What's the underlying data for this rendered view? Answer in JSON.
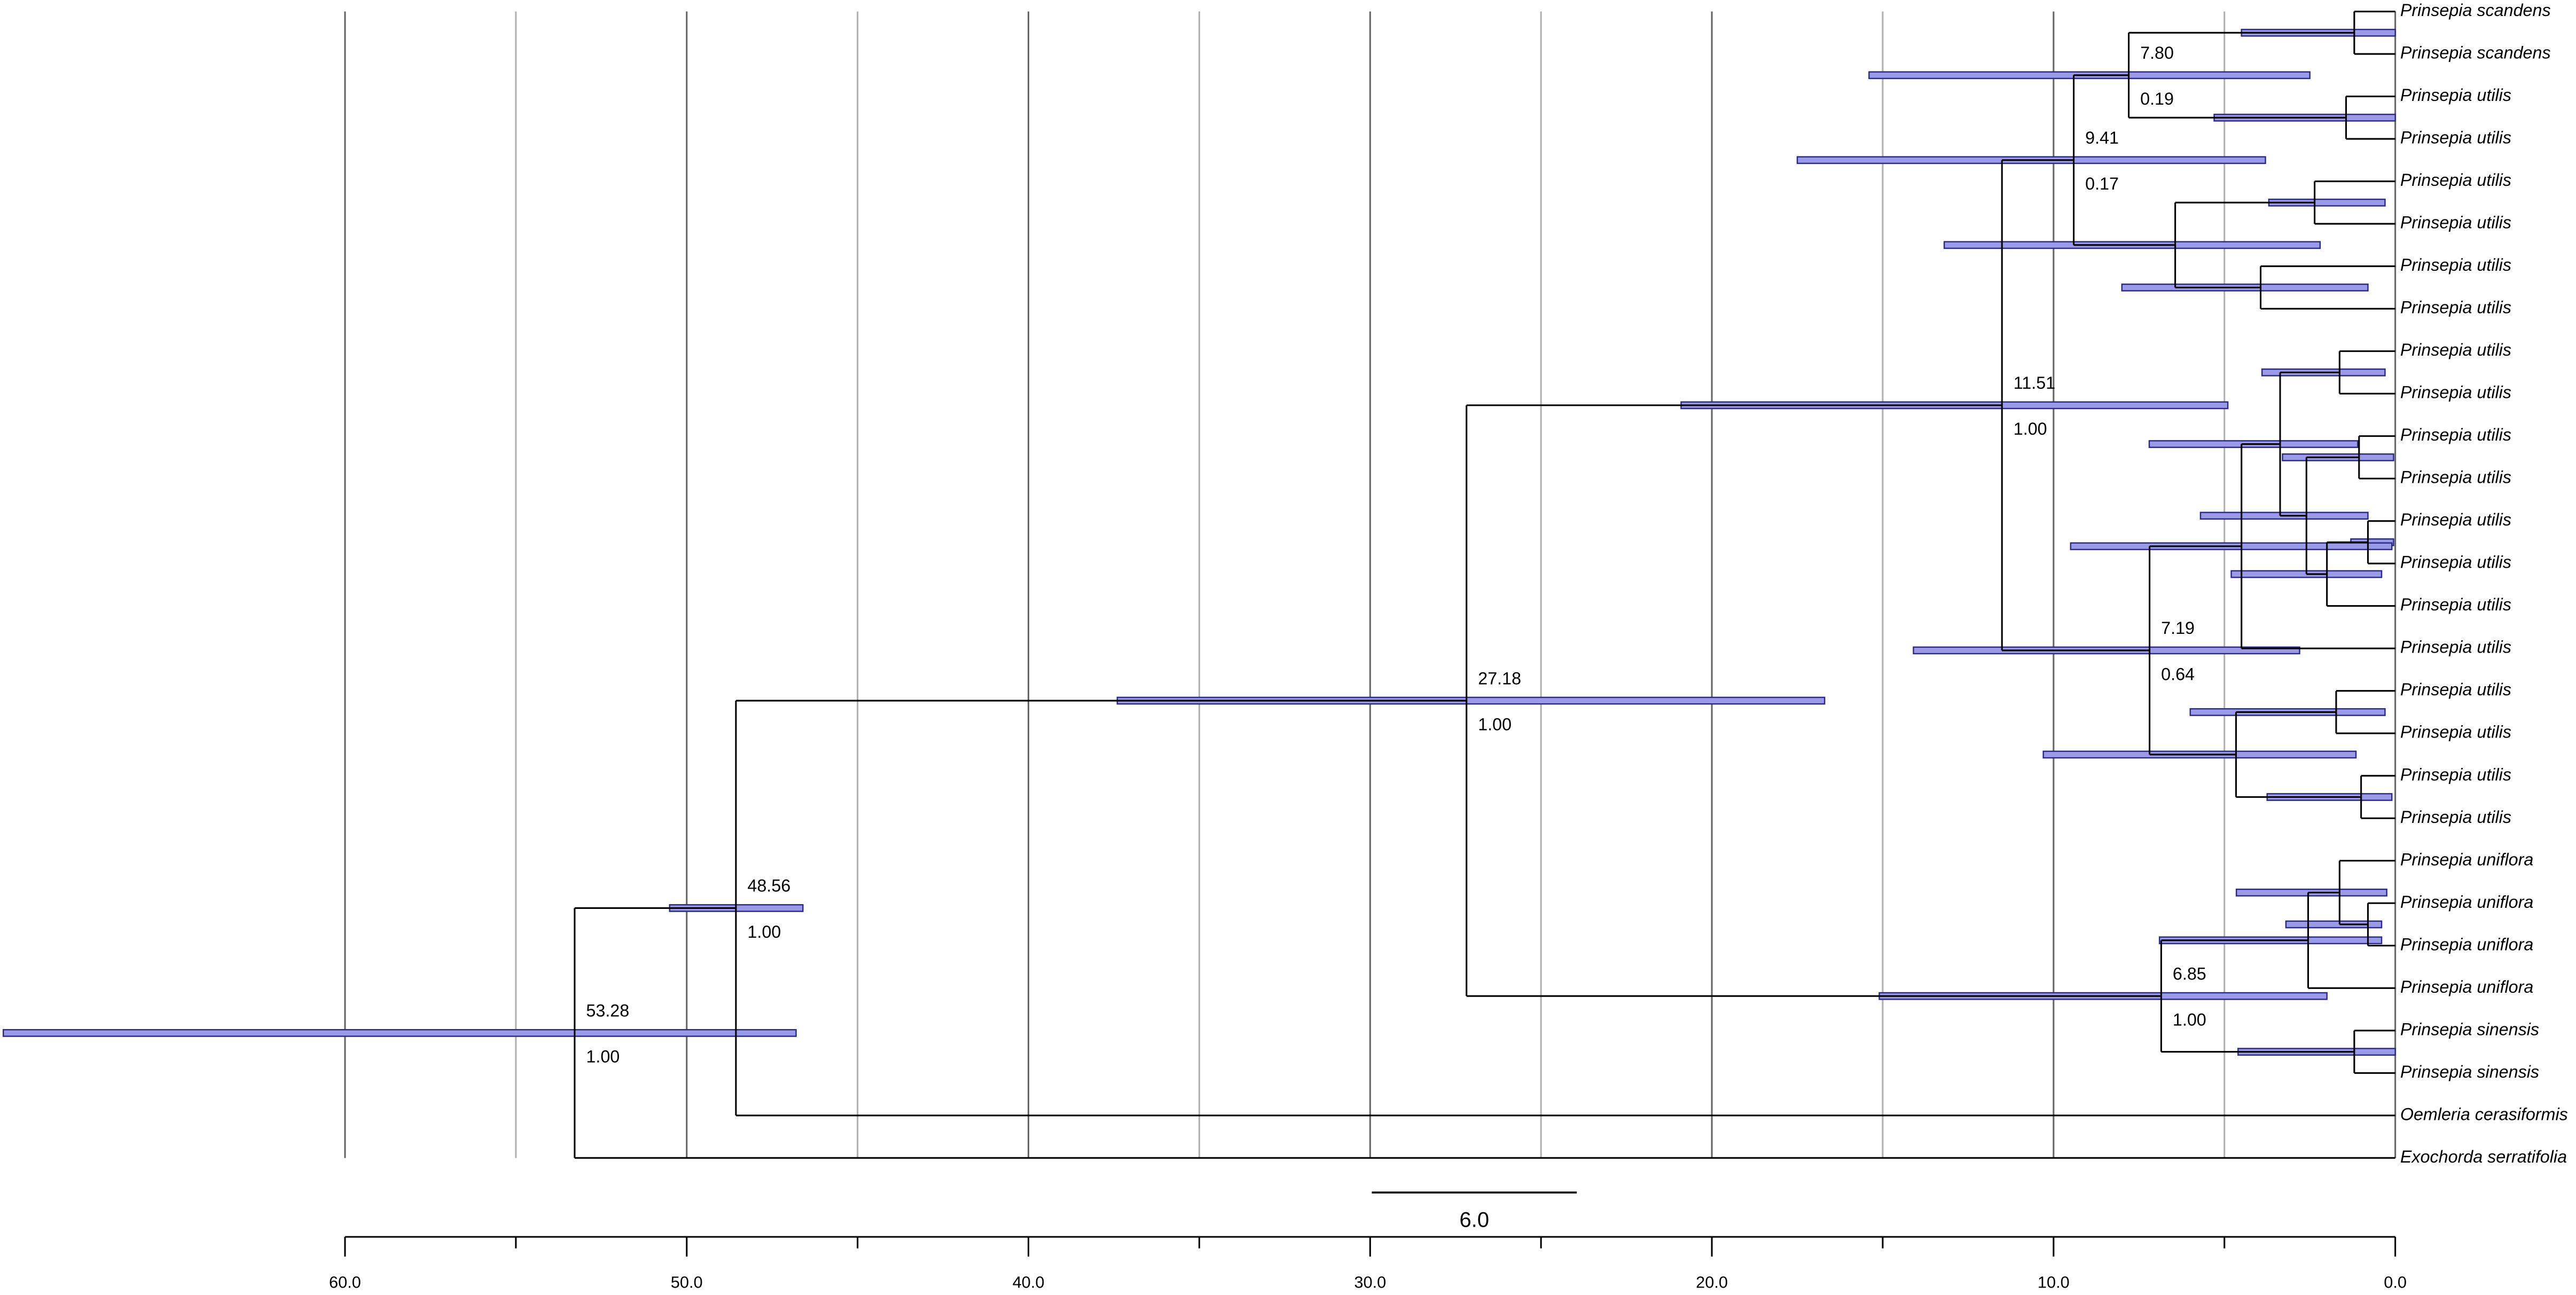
{
  "axis": {
    "xlim": [
      60,
      0
    ],
    "xticks": [
      {
        "value": 60,
        "label": "60.0"
      },
      {
        "value": 50,
        "label": "50.0"
      },
      {
        "value": 40,
        "label": "40.0"
      },
      {
        "value": 30,
        "label": "30.0"
      },
      {
        "value": 20,
        "label": "20.0"
      },
      {
        "value": 10,
        "label": "10.0"
      },
      {
        "value": 0,
        "label": "0.0"
      }
    ],
    "minor_xticks": [
      55,
      45,
      35,
      25,
      15,
      5
    ]
  },
  "scale_bar": {
    "value": 6,
    "label": "6.0"
  },
  "tree": {
    "age": 53.28,
    "age_label": "53.28",
    "posterior": "1.00",
    "hpd": [
      46.8,
      70.0
    ],
    "children": [
      {
        "age": 48.56,
        "age_label": "48.56",
        "posterior": "1.00",
        "hpd": [
          46.6,
          50.5
        ],
        "children": [
          {
            "age": 27.18,
            "age_label": "27.18",
            "posterior": "1.00",
            "hpd": [
              16.7,
              37.4
            ],
            "children": [
              {
                "age": 11.51,
                "age_label": "11.51",
                "posterior": "1.00",
                "hpd": [
                  4.9,
                  20.9
                ],
                "children": [
                  {
                    "age": 9.41,
                    "age_label": "9.41",
                    "posterior": "0.17",
                    "hpd": [
                      3.8,
                      17.5
                    ],
                    "children": [
                      {
                        "age": 7.8,
                        "age_label": "7.80",
                        "posterior": "0.19",
                        "hpd": [
                          2.5,
                          15.4
                        ],
                        "children": [
                          {
                            "age": 1.2,
                            "hpd": [
                              0,
                              4.5
                            ],
                            "children": [
                              {
                                "label": "Prinsepia scandens"
                              },
                              {
                                "label": "Prinsepia scandens"
                              }
                            ]
                          },
                          {
                            "age": 1.44,
                            "hpd": [
                              0,
                              5.3
                            ],
                            "children": [
                              {
                                "label": "Prinsepia utilis"
                              },
                              {
                                "label": "Prinsepia utilis"
                              }
                            ]
                          }
                        ]
                      },
                      {
                        "age": 6.44,
                        "hpd": [
                          2.2,
                          13.2
                        ],
                        "children": [
                          {
                            "age": 2.36,
                            "hpd": [
                              0.3,
                              3.7
                            ],
                            "children": [
                              {
                                "label": "Prinsepia utilis"
                              },
                              {
                                "label": "Prinsepia utilis"
                              }
                            ]
                          },
                          {
                            "age": 3.94,
                            "hpd": [
                              0.8,
                              8.0
                            ],
                            "children": [
                              {
                                "label": "Prinsepia utilis"
                              },
                              {
                                "label": "Prinsepia utilis"
                              }
                            ]
                          }
                        ]
                      }
                    ]
                  },
                  {
                    "age": 7.19,
                    "age_label": "7.19",
                    "posterior": "0.64",
                    "hpd": [
                      2.8,
                      14.1
                    ],
                    "children": [
                      {
                        "age": 4.5,
                        "hpd": [
                          0.1,
                          9.5
                        ],
                        "children": [
                          {
                            "age": 3.37,
                            "hpd": [
                              1.1,
                              7.2
                            ],
                            "children": [
                              {
                                "age": 1.63,
                                "hpd": [
                                  0.3,
                                  3.9
                                ],
                                "children": [
                                  {
                                    "label": "Prinsepia utilis"
                                  },
                                  {
                                    "label": "Prinsepia utilis"
                                  }
                                ]
                              },
                              {
                                "age": 2.6,
                                "hpd": [
                                  0.8,
                                  5.7
                                ],
                                "children": [
                                  {
                                    "age": 1.06,
                                    "hpd": [
                                      0.05,
                                      3.3
                                    ],
                                    "children": [
                                      {
                                        "label": "Prinsepia utilis"
                                      },
                                      {
                                        "label": "Prinsepia utilis"
                                      }
                                    ]
                                  },
                                  {
                                    "age": 2.0,
                                    "hpd": [
                                      0.4,
                                      4.8
                                    ],
                                    "children": [
                                      {
                                        "age": 0.8,
                                        "hpd": [
                                          0.05,
                                          1.3
                                        ],
                                        "children": [
                                          {
                                            "label": "Prinsepia utilis"
                                          },
                                          {
                                            "label": "Prinsepia utilis"
                                          }
                                        ]
                                      },
                                      {
                                        "label": "Prinsepia utilis"
                                      }
                                    ]
                                  }
                                ]
                              }
                            ]
                          },
                          {
                            "label": "Prinsepia utilis"
                          }
                        ]
                      },
                      {
                        "age": 4.66,
                        "hpd": [
                          1.15,
                          10.3
                        ],
                        "children": [
                          {
                            "age": 1.73,
                            "hpd": [
                              0.3,
                              6.0
                            ],
                            "children": [
                              {
                                "label": "Prinsepia utilis"
                              },
                              {
                                "label": "Prinsepia utilis"
                              }
                            ]
                          },
                          {
                            "age": 1.0,
                            "hpd": [
                              0.1,
                              3.75
                            ],
                            "children": [
                              {
                                "label": "Prinsepia utilis"
                              },
                              {
                                "label": "Prinsepia utilis"
                              }
                            ]
                          }
                        ]
                      }
                    ]
                  }
                ]
              },
              {
                "age": 6.85,
                "age_label": "6.85",
                "posterior": "1.00",
                "hpd": [
                  2.0,
                  15.1
                ],
                "children": [
                  {
                    "age": 2.55,
                    "hpd": [
                      0.4,
                      6.9
                    ],
                    "children": [
                      {
                        "age": 1.63,
                        "hpd": [
                          0.25,
                          4.65
                        ],
                        "children": [
                          {
                            "label": "Prinsepia uniflora"
                          },
                          {
                            "age": 0.8,
                            "hpd": [
                              0.4,
                              3.2
                            ],
                            "children": [
                              {
                                "label": "Prinsepia uniflora"
                              },
                              {
                                "label": "Prinsepia uniflora"
                              }
                            ]
                          }
                        ]
                      },
                      {
                        "label": "Prinsepia uniflora"
                      }
                    ]
                  },
                  {
                    "age": 1.2,
                    "hpd": [
                      0,
                      4.6
                    ],
                    "children": [
                      {
                        "label": "Prinsepia sinensis"
                      },
                      {
                        "label": "Prinsepia sinensis"
                      }
                    ]
                  }
                ]
              }
            ]
          },
          {
            "label": "Oemleria cerasiformis"
          }
        ]
      },
      {
        "label": "Exochorda serratifolia"
      }
    ]
  }
}
